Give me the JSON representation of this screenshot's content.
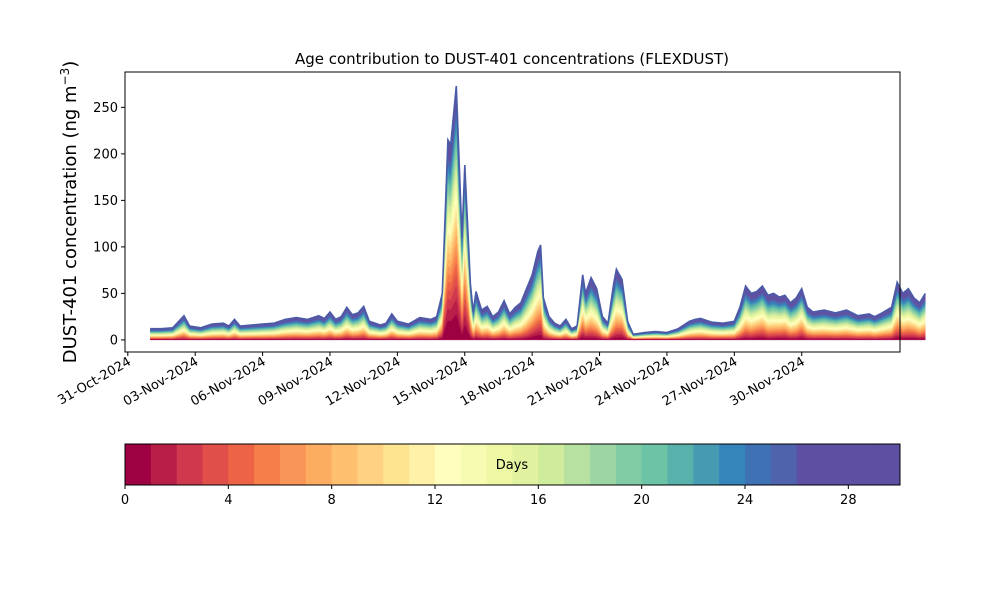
{
  "chart_data": {
    "type": "area",
    "title": "Age contribution to DUST-401 concentrations (FLEXDUST)",
    "ylabel": "DUST-401 concentration (ng m",
    "ylabel_unit_sup": "−3",
    "ylabel_close": ")",
    "ylim": [
      -13,
      288
    ],
    "yticks": [
      0,
      50,
      100,
      150,
      200,
      250
    ],
    "xlim": [
      "2024-10-30T21:00",
      "2024-12-04T09:00"
    ],
    "xticks": [
      {
        "date": "2024-10-31",
        "label": "31-Oct-2024"
      },
      {
        "date": "2024-11-03",
        "label": "03-Nov-2024"
      },
      {
        "date": "2024-11-06",
        "label": "06-Nov-2024"
      },
      {
        "date": "2024-11-09",
        "label": "09-Nov-2024"
      },
      {
        "date": "2024-11-12",
        "label": "12-Nov-2024"
      },
      {
        "date": "2024-11-15",
        "label": "15-Nov-2024"
      },
      {
        "date": "2024-11-18",
        "label": "18-Nov-2024"
      },
      {
        "date": "2024-11-21",
        "label": "21-Nov-2024"
      },
      {
        "date": "2024-11-24",
        "label": "24-Nov-2024"
      },
      {
        "date": "2024-11-27",
        "label": "27-Nov-2024"
      },
      {
        "date": "2024-11-30",
        "label": "30-Nov-2024"
      }
    ],
    "total_series": [
      [
        "2024-11-01T00:00",
        12
      ],
      [
        "2024-11-01T12:00",
        12
      ],
      [
        "2024-11-02T00:00",
        13
      ],
      [
        "2024-11-02T12:00",
        26
      ],
      [
        "2024-11-02T18:00",
        15
      ],
      [
        "2024-11-03T06:00",
        13
      ],
      [
        "2024-11-03T18:00",
        17
      ],
      [
        "2024-11-04T06:00",
        18
      ],
      [
        "2024-11-04T12:00",
        15
      ],
      [
        "2024-11-04T18:00",
        22
      ],
      [
        "2024-11-05T00:00",
        15
      ],
      [
        "2024-11-05T12:00",
        16
      ],
      [
        "2024-11-06T00:00",
        17
      ],
      [
        "2024-11-06T12:00",
        18
      ],
      [
        "2024-11-07T00:00",
        22
      ],
      [
        "2024-11-07T12:00",
        24
      ],
      [
        "2024-11-08T00:00",
        22
      ],
      [
        "2024-11-08T12:00",
        26
      ],
      [
        "2024-11-08T18:00",
        23
      ],
      [
        "2024-11-09T00:00",
        30
      ],
      [
        "2024-11-09T06:00",
        22
      ],
      [
        "2024-11-09T12:00",
        25
      ],
      [
        "2024-11-09T18:00",
        35
      ],
      [
        "2024-11-10T00:00",
        27
      ],
      [
        "2024-11-10T06:00",
        29
      ],
      [
        "2024-11-10T12:00",
        36
      ],
      [
        "2024-11-10T18:00",
        20
      ],
      [
        "2024-11-11T06:00",
        16
      ],
      [
        "2024-11-11T12:00",
        18
      ],
      [
        "2024-11-11T18:00",
        28
      ],
      [
        "2024-11-12T00:00",
        20
      ],
      [
        "2024-11-12T12:00",
        17
      ],
      [
        "2024-11-13T00:00",
        24
      ],
      [
        "2024-11-13T12:00",
        22
      ],
      [
        "2024-11-13T18:00",
        25
      ],
      [
        "2024-11-14T00:00",
        50
      ],
      [
        "2024-11-14T06:00",
        215
      ],
      [
        "2024-11-14T09:00",
        210
      ],
      [
        "2024-11-14T15:00",
        273
      ],
      [
        "2024-11-14T21:00",
        110
      ],
      [
        "2024-11-15T00:00",
        188
      ],
      [
        "2024-11-15T06:00",
        60
      ],
      [
        "2024-11-15T09:00",
        30
      ],
      [
        "2024-11-15T12:00",
        52
      ],
      [
        "2024-11-15T18:00",
        32
      ],
      [
        "2024-11-16T00:00",
        36
      ],
      [
        "2024-11-16T06:00",
        25
      ],
      [
        "2024-11-16T12:00",
        30
      ],
      [
        "2024-11-16T18:00",
        42
      ],
      [
        "2024-11-17T00:00",
        28
      ],
      [
        "2024-11-17T06:00",
        35
      ],
      [
        "2024-11-17T12:00",
        40
      ],
      [
        "2024-11-17T18:00",
        55
      ],
      [
        "2024-11-18T00:00",
        70
      ],
      [
        "2024-11-18T06:00",
        95
      ],
      [
        "2024-11-18T09:00",
        102
      ],
      [
        "2024-11-18T12:00",
        45
      ],
      [
        "2024-11-18T18:00",
        25
      ],
      [
        "2024-11-19T00:00",
        18
      ],
      [
        "2024-11-19T06:00",
        15
      ],
      [
        "2024-11-19T12:00",
        22
      ],
      [
        "2024-11-19T18:00",
        12
      ],
      [
        "2024-11-20T00:00",
        15
      ],
      [
        "2024-11-20T06:00",
        70
      ],
      [
        "2024-11-20T09:00",
        50
      ],
      [
        "2024-11-20T15:00",
        67
      ],
      [
        "2024-11-20T21:00",
        55
      ],
      [
        "2024-11-21T03:00",
        25
      ],
      [
        "2024-11-21T09:00",
        18
      ],
      [
        "2024-11-21T15:00",
        60
      ],
      [
        "2024-11-21T18:00",
        76
      ],
      [
        "2024-11-22T00:00",
        65
      ],
      [
        "2024-11-22T06:00",
        20
      ],
      [
        "2024-11-22T12:00",
        6
      ],
      [
        "2024-11-23T00:00",
        8
      ],
      [
        "2024-11-23T12:00",
        9
      ],
      [
        "2024-11-24T00:00",
        8
      ],
      [
        "2024-11-24T12:00",
        12
      ],
      [
        "2024-11-25T00:00",
        20
      ],
      [
        "2024-11-25T06:00",
        22
      ],
      [
        "2024-11-25T12:00",
        23
      ],
      [
        "2024-11-26T00:00",
        19
      ],
      [
        "2024-11-26T12:00",
        18
      ],
      [
        "2024-11-27T00:00",
        20
      ],
      [
        "2024-11-27T06:00",
        35
      ],
      [
        "2024-11-27T12:00",
        58
      ],
      [
        "2024-11-27T18:00",
        50
      ],
      [
        "2024-11-28T00:00",
        52
      ],
      [
        "2024-11-28T06:00",
        58
      ],
      [
        "2024-11-28T12:00",
        48
      ],
      [
        "2024-11-28T18:00",
        50
      ],
      [
        "2024-11-29T00:00",
        46
      ],
      [
        "2024-11-29T06:00",
        48
      ],
      [
        "2024-11-29T12:00",
        40
      ],
      [
        "2024-11-29T18:00",
        45
      ],
      [
        "2024-11-30T00:00",
        55
      ],
      [
        "2024-11-30T06:00",
        35
      ],
      [
        "2024-11-30T12:00",
        30
      ],
      [
        "2024-12-01T00:00",
        32
      ],
      [
        "2024-12-01T12:00",
        29
      ],
      [
        "2024-12-02T00:00",
        32
      ],
      [
        "2024-12-02T12:00",
        26
      ],
      [
        "2024-12-03T00:00",
        28
      ],
      [
        "2024-12-03T06:00",
        25
      ],
      [
        "2024-12-03T12:00",
        28
      ],
      [
        "2024-12-04T00:00",
        35
      ],
      [
        "2024-12-04T06:00",
        62
      ],
      [
        "2024-12-04T12:00",
        50
      ],
      [
        "2024-12-04T18:00",
        55
      ],
      [
        "2024-12-05T00:00",
        45
      ],
      [
        "2024-12-05T06:00",
        40
      ],
      [
        "2024-12-05T12:00",
        50
      ]
    ],
    "age_classes_days": 30,
    "colormap": "Spectral",
    "colorbar": {
      "label": "Days",
      "range": [
        0,
        30
      ],
      "ticks": [
        0,
        4,
        8,
        12,
        16,
        20,
        24,
        28
      ],
      "colors": [
        "#9e0142",
        "#b91e48",
        "#cf384d",
        "#e04f4a",
        "#ec6445",
        "#f67e4b",
        "#f99556",
        "#fdad60",
        "#febf6f",
        "#fed281",
        "#fee391",
        "#fff1a8",
        "#fffebe",
        "#f7fbb1",
        "#eef8a4",
        "#e0f29f",
        "#cfeb9c",
        "#b7e1a1",
        "#9dd6a4",
        "#82cca5",
        "#6cc3a5",
        "#58b2ab",
        "#469bb3",
        "#3585bb",
        "#3f72b4",
        "#4e63ab",
        "#5e4fa2",
        "#5e4fa2",
        "#5e4fa2",
        "#5e4fa2"
      ]
    }
  }
}
